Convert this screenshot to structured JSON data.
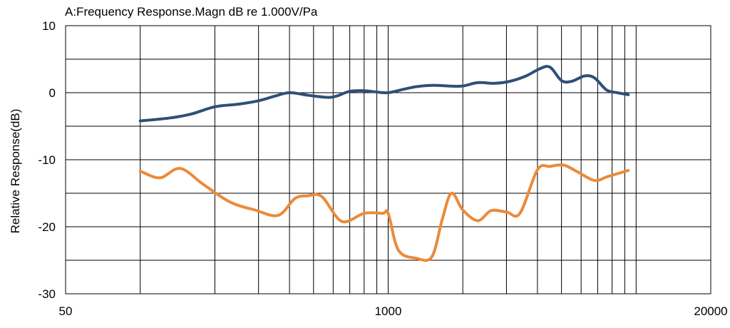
{
  "chart_data": {
    "type": "line",
    "title": "A:Frequency Response.Magn dB re 1.000V/Pa",
    "xlabel": "",
    "ylabel": "Relative Response(dB)",
    "xscale": "log",
    "xlim": [
      50,
      20000
    ],
    "ylim": [
      -30,
      10
    ],
    "x_ticks": [
      50,
      1000,
      20000
    ],
    "x_tick_labels": [
      "50",
      "1000",
      "20000"
    ],
    "y_ticks": [
      10,
      0,
      -10,
      -20,
      -30
    ],
    "y_tick_labels": [
      "10",
      "0",
      "-10",
      "-20",
      "-30"
    ],
    "x_gridlines": [
      100,
      200,
      300,
      400,
      500,
      600,
      700,
      800,
      900,
      1000,
      2000,
      3000,
      4000,
      5000,
      6000,
      7000,
      8000,
      9000,
      10000,
      20000
    ],
    "y_gridlines": [
      10,
      5,
      0,
      -5,
      -10,
      -15,
      -20,
      -25,
      -30
    ],
    "grid": true,
    "legend": "none",
    "series": [
      {
        "color": "#2E5077",
        "x": [
          100,
          130,
          160,
          200,
          250,
          300,
          350,
          400,
          480,
          570,
          620,
          700,
          800,
          900,
          1000,
          1150,
          1300,
          1500,
          1750,
          2000,
          2300,
          2700,
          3100,
          3600,
          4100,
          4500,
          5000,
          5500,
          6200,
          6800,
          7600,
          8400,
          9300
        ],
        "y": [
          -4.2,
          -3.8,
          -3.2,
          -2.1,
          -1.7,
          -1.2,
          -0.5,
          0.0,
          -0.4,
          -0.7,
          -0.5,
          0.2,
          0.3,
          0.1,
          0.0,
          0.5,
          0.9,
          1.1,
          1.0,
          1.0,
          1.5,
          1.4,
          1.7,
          2.5,
          3.6,
          3.8,
          1.8,
          1.7,
          2.5,
          2.2,
          0.4,
          0.0,
          -0.3
        ]
      },
      {
        "color": "#EC8A39",
        "x": [
          100,
          120,
          145,
          180,
          230,
          290,
          360,
          420,
          470,
          540,
          650,
          800,
          950,
          1000,
          1100,
          1300,
          1500,
          1650,
          1800,
          2000,
          2300,
          2600,
          3000,
          3400,
          4000,
          4500,
          5100,
          5800,
          6800,
          7700,
          9300
        ],
        "y": [
          -11.7,
          -12.7,
          -11.3,
          -13.7,
          -16.3,
          -17.5,
          -18.3,
          -15.8,
          -15.4,
          -15.5,
          -19.2,
          -18.0,
          -18.0,
          -18.0,
          -23.5,
          -24.7,
          -24.5,
          -19.0,
          -15.0,
          -17.5,
          -19.1,
          -17.6,
          -17.8,
          -18.0,
          -11.5,
          -11.0,
          -10.8,
          -11.8,
          -13.1,
          -12.5,
          -11.6
        ]
      }
    ]
  }
}
